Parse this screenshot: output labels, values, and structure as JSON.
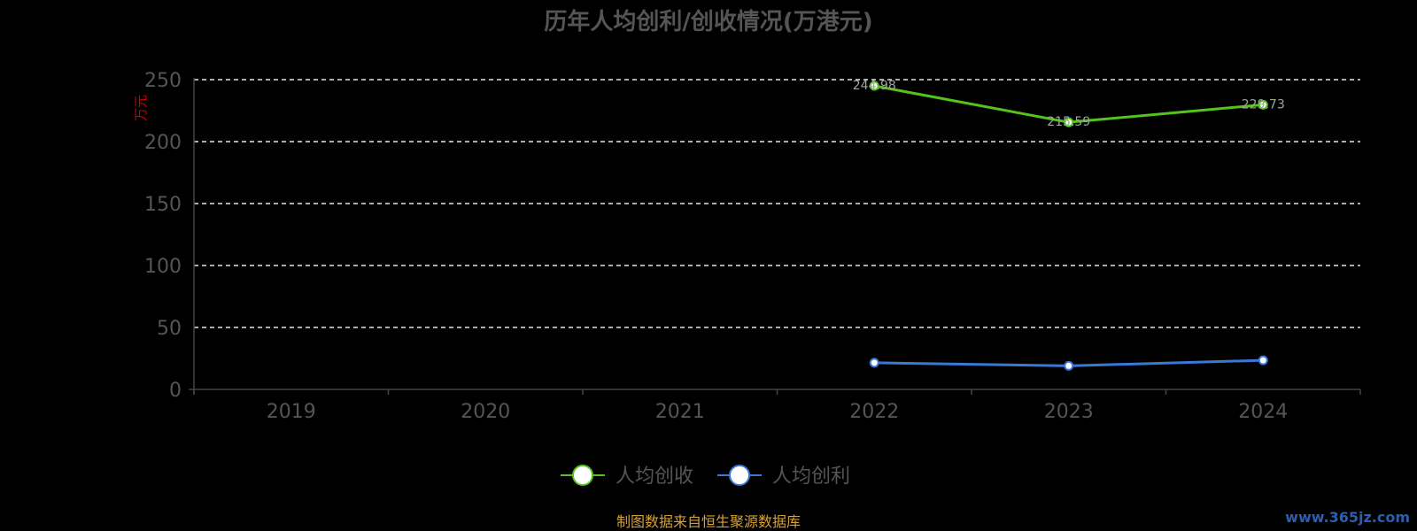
{
  "chart_data": {
    "type": "line",
    "title": "历年人均创利/创收情况(万港元)",
    "y_unit_label": "万元",
    "categories": [
      "2019",
      "2020",
      "2021",
      "2022",
      "2023",
      "2024"
    ],
    "ylim": [
      0,
      250
    ],
    "y_ticks": [
      "0",
      "50",
      "100",
      "150",
      "200",
      "250"
    ],
    "grid": true,
    "legend_position": "bottom-center",
    "series": [
      {
        "name": "人均创收",
        "color": "#52c41a",
        "values": [
          null,
          null,
          null,
          244.98,
          215.59,
          229.73
        ]
      },
      {
        "name": "人均创利",
        "color": "#3a78d8",
        "values": [
          null,
          null,
          null,
          21.5,
          19.0,
          23.5
        ]
      }
    ]
  },
  "footer": {
    "source": "制图数据来自恒生聚源数据库",
    "watermark": "www.365jz.com"
  }
}
